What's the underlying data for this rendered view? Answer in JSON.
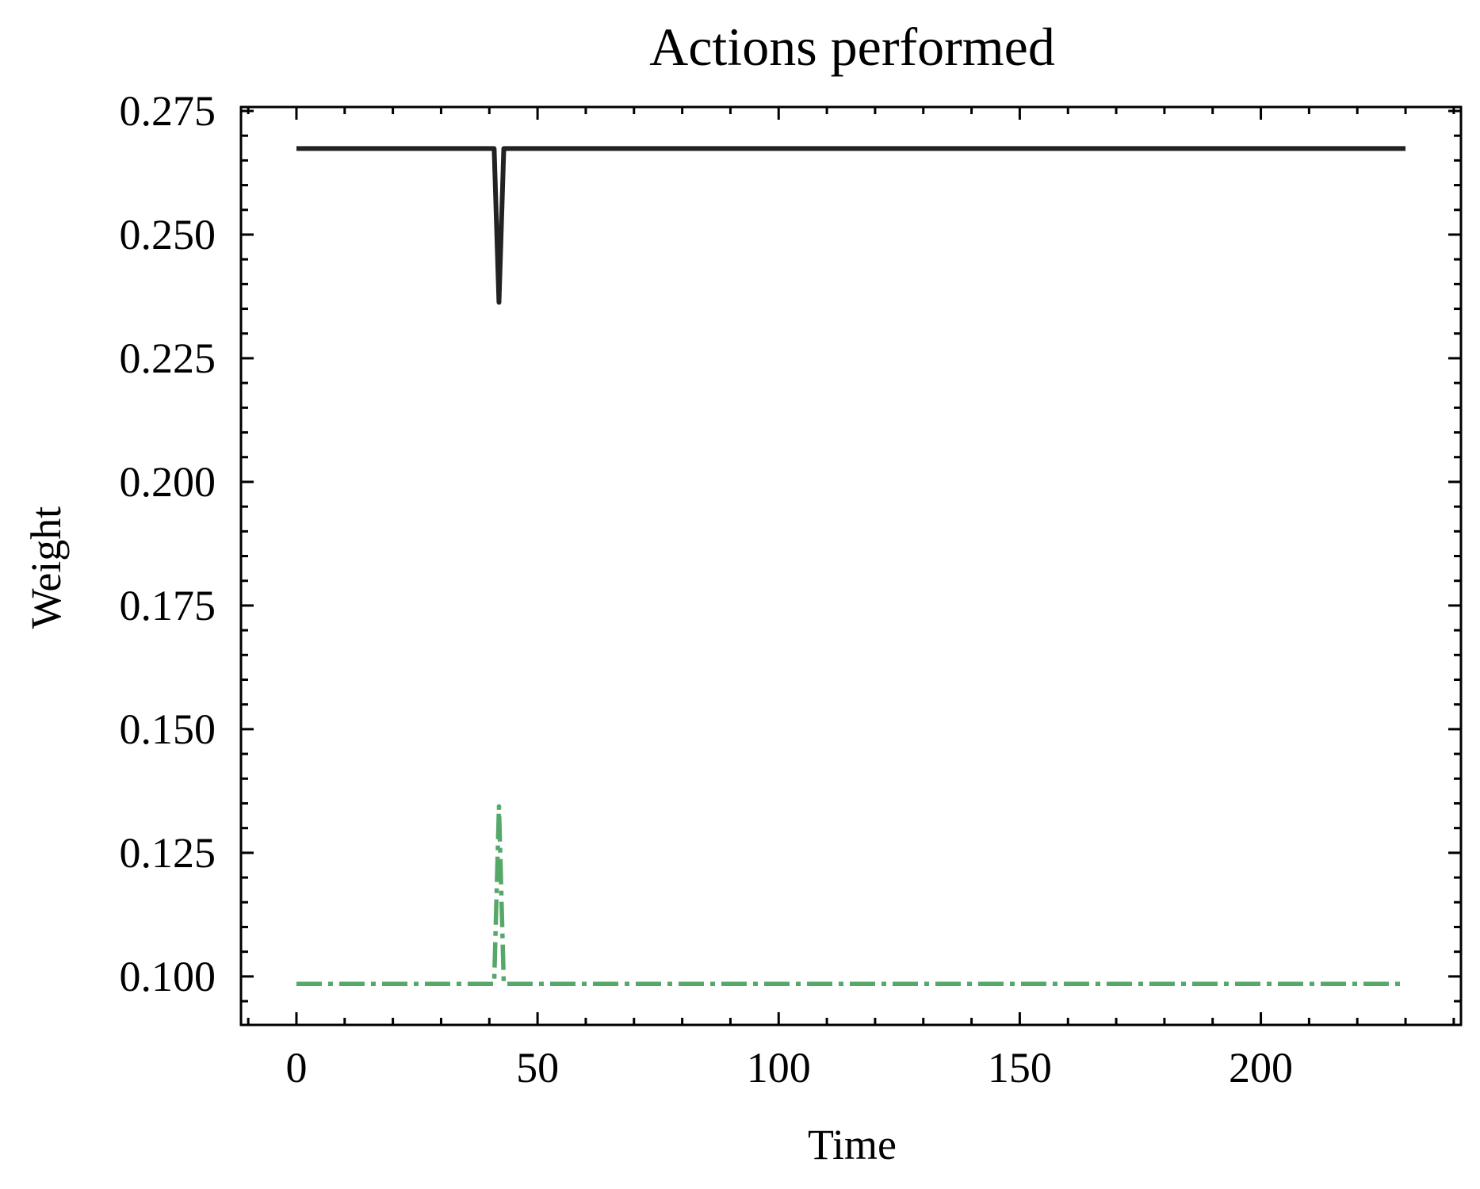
{
  "chart_data": {
    "type": "line",
    "title": "Actions performed",
    "xlabel": "Time",
    "ylabel": "Weight",
    "xlim": [
      -11.5,
      241.5
    ],
    "ylim": [
      0.0902,
      0.2758
    ],
    "xticks": [
      0,
      50,
      100,
      150,
      200
    ],
    "yticks": [
      0.1,
      0.125,
      0.15,
      0.175,
      0.2,
      0.225,
      0.25,
      0.275
    ],
    "ytick_labels": [
      "0.100",
      "0.125",
      "0.150",
      "0.175",
      "0.200",
      "0.225",
      "0.250",
      "0.275"
    ],
    "grid": false,
    "legend": false,
    "series": [
      {
        "color": "#222222",
        "style": "solid",
        "x": [
          0,
          41,
          42,
          43,
          230
        ],
        "y": [
          0.2674,
          0.2674,
          0.2363,
          0.2674,
          0.2674
        ]
      },
      {
        "color": "#55a868",
        "style": "dashdot",
        "x": [
          0,
          41,
          42,
          43,
          230
        ],
        "y": [
          0.0985,
          0.0985,
          0.1344,
          0.0985,
          0.0985
        ]
      }
    ]
  }
}
